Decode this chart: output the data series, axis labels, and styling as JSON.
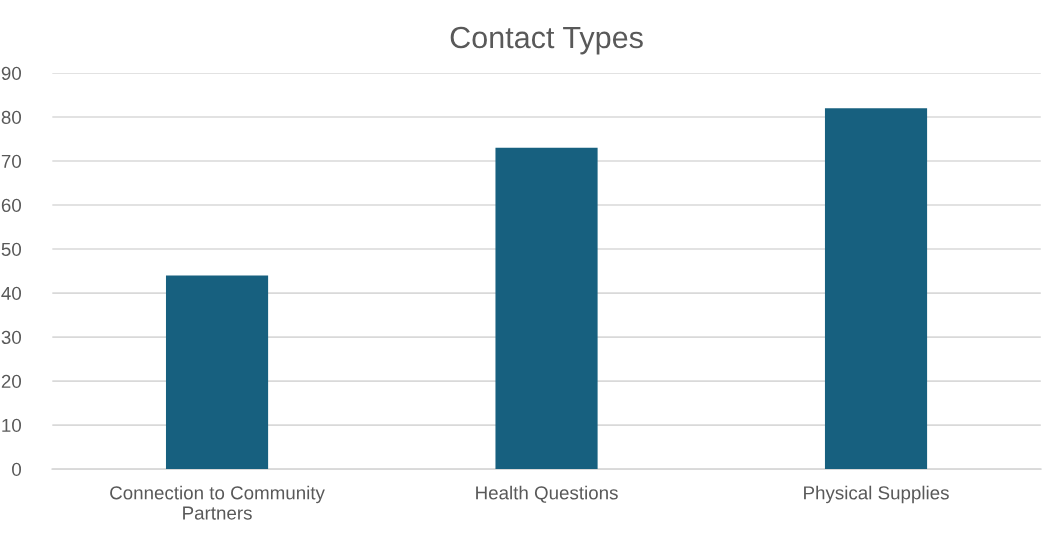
{
  "chart_data": {
    "type": "bar",
    "title": "Contact Types",
    "categories": [
      "Connection to Community Partners",
      "Health Questions",
      "Physical Supplies"
    ],
    "values": [
      44,
      73,
      82
    ],
    "color": "#17607f",
    "ylim": [
      0,
      90
    ],
    "yticks": [
      0,
      10,
      20,
      30,
      40,
      50,
      60,
      70,
      80,
      90
    ],
    "grid": "y",
    "legend": false
  }
}
